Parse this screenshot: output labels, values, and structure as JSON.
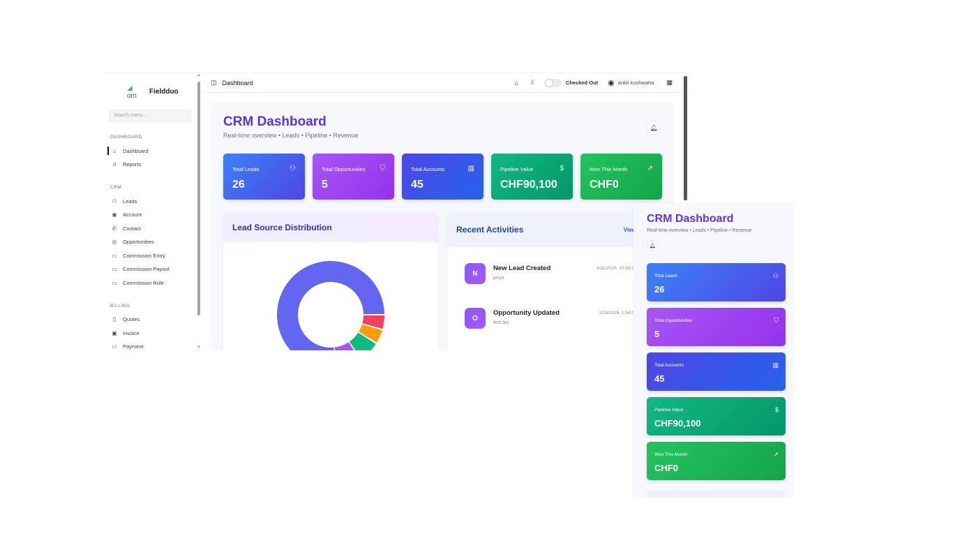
{
  "sidebar": {
    "brand": "Fieldduo",
    "logo_alt": "om",
    "search_placeholder": "Search menu...",
    "sections": [
      {
        "title": "DASHBOARD",
        "items": [
          {
            "label": "Dashboard",
            "icon": "home-icon",
            "active": true
          },
          {
            "label": "Reports",
            "icon": "bar-chart-icon"
          }
        ]
      },
      {
        "title": "CRM",
        "items": [
          {
            "label": "Leads",
            "icon": "users-icon"
          },
          {
            "label": "Account",
            "icon": "user-circle-icon"
          },
          {
            "label": "Contact",
            "icon": "phone-icon"
          },
          {
            "label": "Opportunities",
            "icon": "target-icon"
          },
          {
            "label": "Commission Entry",
            "icon": "card-icon"
          },
          {
            "label": "Commission Payout",
            "icon": "card-icon"
          },
          {
            "label": "Commission Rule",
            "icon": "card-icon"
          }
        ]
      },
      {
        "title": "BILLING",
        "items": [
          {
            "label": "Quotes",
            "icon": "file-icon"
          },
          {
            "label": "Invoice",
            "icon": "invoice-icon"
          },
          {
            "label": "Payment",
            "icon": "card-icon"
          }
        ]
      }
    ]
  },
  "topbar": {
    "title": "Dashboard",
    "status": "Checked Out",
    "user": "ankit kushwaha",
    "checked_in": false
  },
  "header": {
    "title": "CRM Dashboard",
    "subtitle": "Real-time overview • Leads • Pipeline • Revenue"
  },
  "stats": [
    {
      "label": "Total Leads",
      "value": "26",
      "icon": "users-icon",
      "from": "#3b82f6",
      "to": "#4f46e5"
    },
    {
      "label": "Total Opportunities",
      "value": "5",
      "icon": "handshake-icon",
      "from": "#a855f7",
      "to": "#9333ea"
    },
    {
      "label": "Total Accounts",
      "value": "45",
      "icon": "building-icon",
      "from": "#4f46e5",
      "to": "#2563eb"
    },
    {
      "label": "Pipeline Value",
      "value": "CHF90,100",
      "icon": "dollar-icon",
      "from": "#10b981",
      "to": "#059669"
    },
    {
      "label": "Won This Month",
      "value": "CHF0",
      "icon": "trending-up-icon",
      "from": "#22c55e",
      "to": "#16a34a"
    }
  ],
  "lead_source": {
    "title": "Lead Source Distribution"
  },
  "activities": {
    "title": "Recent Activities",
    "view_all": "View All",
    "items": [
      {
        "initial": "N",
        "title": "New Lead Created",
        "subtitle": "priya",
        "time": "1/31/2026, 10:58:3"
      },
      {
        "initial": "O",
        "title": "Opportunity Updated",
        "subtitle": "test lax",
        "time": "1/29/2026, 1:54:0"
      }
    ]
  },
  "chart_data": {
    "type": "pie",
    "title": "Lead Source Distribution",
    "donut": true,
    "values": [
      69,
      4,
      4,
      6,
      7
    ],
    "colors": [
      "#6366f1",
      "#f43f5e",
      "#f59e0b",
      "#10b981",
      "#a855f7"
    ]
  }
}
